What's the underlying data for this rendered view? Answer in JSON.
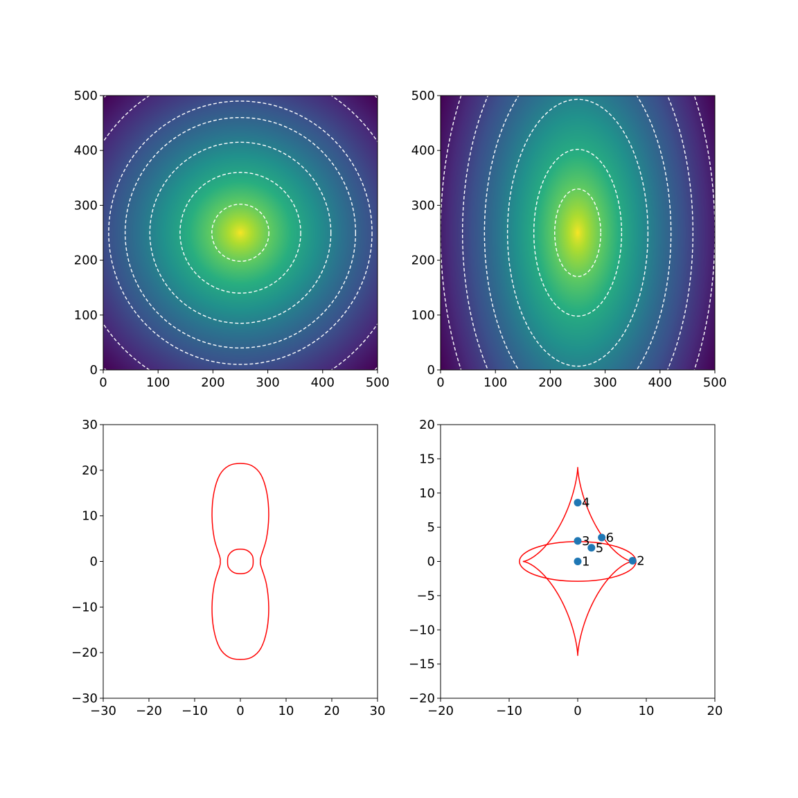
{
  "chart_data": [
    {
      "type": "heatmap",
      "title": "",
      "xlabel": "",
      "ylabel": "",
      "xlim": [
        0,
        500
      ],
      "ylim": [
        0,
        500
      ],
      "xticks": [
        0,
        100,
        200,
        300,
        400,
        500
      ],
      "yticks": [
        0,
        100,
        200,
        300,
        400,
        500
      ],
      "colormap": "viridis",
      "center": [
        250,
        250
      ],
      "axis_ratio_y_over_x": 1.0,
      "contour_color": "#ffffff",
      "contour_style": "dashed",
      "contour_radii_x": [
        52,
        110,
        165,
        210,
        240,
        300,
        350
      ]
    },
    {
      "type": "heatmap",
      "title": "",
      "xlabel": "",
      "ylabel": "",
      "xlim": [
        0,
        500
      ],
      "ylim": [
        0,
        500
      ],
      "xticks": [
        0,
        100,
        200,
        300,
        400,
        500
      ],
      "yticks": [
        0,
        100,
        200,
        300,
        400,
        500
      ],
      "colormap": "viridis",
      "center": [
        250,
        250
      ],
      "axis_ratio_y_over_x": 1.9,
      "contour_color": "#ffffff",
      "contour_style": "dashed",
      "contour_radii_x": [
        42,
        80,
        128,
        170,
        210,
        250,
        300
      ]
    },
    {
      "type": "line",
      "title": "",
      "xlabel": "",
      "ylabel": "",
      "xlim": [
        -30,
        30
      ],
      "ylim": [
        -30,
        30
      ],
      "xticks": [
        -30,
        -20,
        -10,
        0,
        10,
        20,
        30
      ],
      "yticks": [
        -30,
        -20,
        -10,
        0,
        10,
        20,
        30
      ],
      "line_color": "#ff0000",
      "curves": [
        {
          "kind": "outer",
          "points": [
            [
              0,
              21.5
            ],
            [
              2.5,
              21
            ],
            [
              4.5,
              19
            ],
            [
              5.8,
              15
            ],
            [
              6.2,
              10
            ],
            [
              5.7,
              5
            ],
            [
              4.5,
              1
            ],
            [
              4.4,
              0
            ],
            [
              4.5,
              -1
            ],
            [
              5.7,
              -5
            ],
            [
              6.2,
              -10
            ],
            [
              5.8,
              -15
            ],
            [
              4.5,
              -19
            ],
            [
              2.5,
              -21
            ],
            [
              0,
              -21.5
            ],
            [
              -2.5,
              -21
            ],
            [
              -4.5,
              -19
            ],
            [
              -5.8,
              -15
            ],
            [
              -6.2,
              -10
            ],
            [
              -5.7,
              -5
            ],
            [
              -4.5,
              -1
            ],
            [
              -4.4,
              0
            ],
            [
              -4.5,
              1
            ],
            [
              -5.7,
              5
            ],
            [
              -6.2,
              10
            ],
            [
              -5.8,
              15
            ],
            [
              -4.5,
              19
            ],
            [
              -2.5,
              21
            ],
            [
              0,
              21.5
            ]
          ]
        },
        {
          "kind": "inner",
          "points": [
            [
              0,
              2.7
            ],
            [
              1.5,
              2.4
            ],
            [
              2.6,
              1.3
            ],
            [
              2.8,
              0
            ],
            [
              2.6,
              -1.3
            ],
            [
              1.5,
              -2.4
            ],
            [
              0,
              -2.7
            ],
            [
              -1.5,
              -2.4
            ],
            [
              -2.6,
              -1.3
            ],
            [
              -2.8,
              0
            ],
            [
              -2.6,
              1.3
            ],
            [
              -1.5,
              2.4
            ],
            [
              0,
              2.7
            ]
          ]
        }
      ]
    },
    {
      "type": "scatter",
      "title": "",
      "xlabel": "",
      "ylabel": "",
      "xlim": [
        -20,
        20
      ],
      "ylim": [
        -20,
        20
      ],
      "xticks": [
        -20,
        -10,
        0,
        10,
        20
      ],
      "yticks": [
        -20,
        -15,
        -10,
        -5,
        0,
        5,
        10,
        15,
        20
      ],
      "line_color": "#ff0000",
      "point_color": "#1f77b4",
      "astroid": {
        "a": 8.0,
        "b": 13.8
      },
      "ellipse": {
        "rx": 8.5,
        "ry": 2.9
      },
      "points": [
        {
          "label": "1",
          "x": 0,
          "y": 0
        },
        {
          "label": "2",
          "x": 8.0,
          "y": 0.1
        },
        {
          "label": "3",
          "x": 0,
          "y": 3.0
        },
        {
          "label": "4",
          "x": 0,
          "y": 8.6
        },
        {
          "label": "5",
          "x": 2.0,
          "y": 2.0
        },
        {
          "label": "6",
          "x": 3.5,
          "y": 3.5
        }
      ]
    }
  ]
}
